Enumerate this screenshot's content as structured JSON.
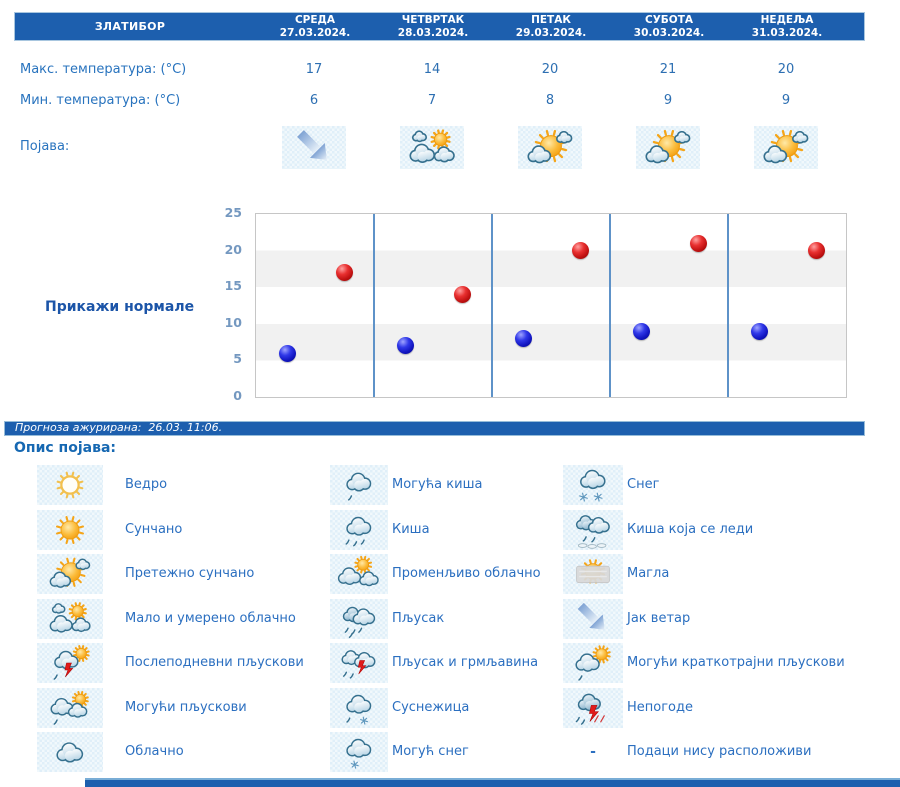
{
  "header": {
    "location": "ЗЛАТИБОР",
    "days": [
      {
        "name": "СРЕДА",
        "date": "27.03.2024."
      },
      {
        "name": "ЧЕТВРТАК",
        "date": "28.03.2024."
      },
      {
        "name": "ПЕТАК",
        "date": "29.03.2024."
      },
      {
        "name": "СУБОТА",
        "date": "30.03.2024."
      },
      {
        "name": "НЕДЕЉА",
        "date": "31.03.2024."
      }
    ]
  },
  "rows": {
    "max_label": "Макс. температура: (°C)",
    "min_label": "Мин. температура: (°C)",
    "phenomena_label": "Појава:",
    "max_values": [
      "17",
      "14",
      "20",
      "21",
      "20"
    ],
    "min_values": [
      "6",
      "7",
      "8",
      "9",
      "9"
    ],
    "phenomena_icons": [
      "strong-wind-icon",
      "partly-cloudy-icon",
      "mostly-sunny-icon",
      "mostly-sunny-icon",
      "mostly-sunny-icon"
    ]
  },
  "chart": {
    "normals_label": "Прикажи нормале"
  },
  "chart_data": {
    "type": "scatter",
    "categories": [
      "27.03.2024.",
      "28.03.2024.",
      "29.03.2024.",
      "30.03.2024.",
      "31.03.2024."
    ],
    "series": [
      {
        "name": "Макс. температура",
        "color": "#C11212",
        "values": [
          17,
          14,
          20,
          21,
          20
        ]
      },
      {
        "name": "Мин. температура",
        "color": "#1216C1",
        "values": [
          6,
          7,
          8,
          9,
          9
        ]
      }
    ],
    "ylim": [
      0,
      25
    ],
    "yticks": [
      0,
      5,
      10,
      15,
      20,
      25
    ],
    "grid": "horizontal-bands-every-5",
    "legend_position": "none",
    "title": "",
    "xlabel": "",
    "ylabel": ""
  },
  "status_bar": {
    "text": "Прогноза ажурирана:  26.03. 11:06."
  },
  "legend": {
    "title": "Опис појава:",
    "columns": [
      {
        "items": [
          {
            "icon": "clear-icon",
            "label": "Ведро"
          },
          {
            "icon": "sunny-icon",
            "label": "Сунчано"
          },
          {
            "icon": "mostly-sunny-icon",
            "label": "Претежно сунчано"
          },
          {
            "icon": "partly-cloudy-icon",
            "label": "Мало и умерено облачно"
          },
          {
            "icon": "afternoon-showers-icon",
            "label": "Послеподневни пљускови"
          },
          {
            "icon": "possible-showers-icon",
            "label": "Могући пљускови"
          },
          {
            "icon": "cloudy-icon",
            "label": "Облачно"
          }
        ]
      },
      {
        "items": [
          {
            "icon": "possible-rain-icon",
            "label": "Могућа киша"
          },
          {
            "icon": "rain-icon",
            "label": "Киша"
          },
          {
            "icon": "variable-cloudy-icon",
            "label": "Променљиво облачно"
          },
          {
            "icon": "shower-icon",
            "label": "Пљусак"
          },
          {
            "icon": "shower-thunder-icon",
            "label": "Пљусак и грмљавина"
          },
          {
            "icon": "sleet-icon",
            "label": "Суснежица"
          },
          {
            "icon": "possible-snow-icon",
            "label": "Могућ снег"
          }
        ]
      },
      {
        "items": [
          {
            "icon": "snow-icon",
            "label": "Снег"
          },
          {
            "icon": "freezing-rain-icon",
            "label": "Киша која се леди"
          },
          {
            "icon": "fog-icon",
            "label": "Магла"
          },
          {
            "icon": "strong-wind-icon",
            "label": "Јак ветар"
          },
          {
            "icon": "possible-brief-showers-icon",
            "label": "Могући краткотрајни пљускови"
          },
          {
            "icon": "storms-icon",
            "label": "Непогоде"
          },
          {
            "icon": "no-data",
            "label": "Подаци нису расположиви",
            "dash": "-"
          }
        ]
      }
    ]
  }
}
